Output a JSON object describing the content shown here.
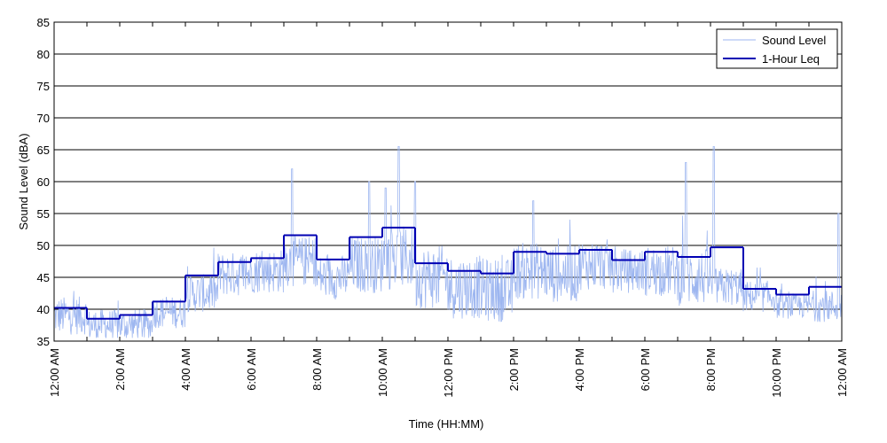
{
  "chart_data": {
    "type": "line",
    "xlabel": "Time (HH:MM)",
    "ylabel": "Sound Level (dBA)",
    "ylim": [
      35,
      85
    ],
    "xlim_hours": [
      0,
      24
    ],
    "y_ticks": [
      35,
      40,
      45,
      50,
      55,
      60,
      65,
      70,
      75,
      80,
      85
    ],
    "x_ticks": [
      {
        "hour": 0,
        "label": "12:00 AM"
      },
      {
        "hour": 2,
        "label": "2:00 AM"
      },
      {
        "hour": 4,
        "label": "4:00 AM"
      },
      {
        "hour": 6,
        "label": "6:00 AM"
      },
      {
        "hour": 8,
        "label": "8:00 AM"
      },
      {
        "hour": 10,
        "label": "10:00 AM"
      },
      {
        "hour": 12,
        "label": "12:00 PM"
      },
      {
        "hour": 14,
        "label": "2:00 PM"
      },
      {
        "hour": 16,
        "label": "4:00 PM"
      },
      {
        "hour": 18,
        "label": "6:00 PM"
      },
      {
        "hour": 20,
        "label": "8:00 PM"
      },
      {
        "hour": 22,
        "label": "10:00 PM"
      },
      {
        "hour": 24,
        "label": "12:00 AM"
      }
    ],
    "grid": "horizontal",
    "legend_position": "top-right",
    "series": [
      {
        "name": "Sound Level",
        "color": "#9db6f0",
        "style": "thin-line",
        "hourly_base": [
          39,
          37.5,
          37.5,
          39.5,
          42.5,
          45.5,
          46,
          47.5,
          45,
          47,
          48,
          45,
          43.5,
          43,
          46,
          45.5,
          47,
          46,
          46,
          45,
          43.5,
          42,
          40.5,
          40.5
        ],
        "hourly_spread": [
          3,
          2.5,
          2.5,
          2.5,
          3,
          3.5,
          3.5,
          4,
          3.5,
          4.5,
          5,
          5,
          5,
          5,
          4.5,
          4.5,
          4,
          3.5,
          4,
          4.5,
          3,
          2.5,
          2,
          2.5
        ],
        "peaks": [
          {
            "hour": 7.25,
            "db": 62
          },
          {
            "hour": 9.6,
            "db": 60
          },
          {
            "hour": 10.5,
            "db": 65.5
          },
          {
            "hour": 11.0,
            "db": 60
          },
          {
            "hour": 10.1,
            "db": 59
          },
          {
            "hour": 19.25,
            "db": 63
          },
          {
            "hour": 20.1,
            "db": 65.5
          },
          {
            "hour": 14.6,
            "db": 57
          },
          {
            "hour": 23.9,
            "db": 55
          }
        ]
      },
      {
        "name": "1-Hour Leq",
        "color": "#0000b3",
        "style": "step",
        "hours": [
          0,
          1,
          2,
          3,
          4,
          5,
          6,
          7,
          8,
          9,
          10,
          11,
          12,
          13,
          14,
          15,
          16,
          17,
          18,
          19,
          20,
          21,
          22,
          23
        ],
        "values": [
          40.2,
          38.5,
          39.1,
          41.2,
          45.3,
          47.4,
          48.0,
          51.6,
          47.8,
          51.3,
          52.8,
          47.2,
          46.0,
          45.6,
          49.0,
          48.7,
          49.3,
          47.7,
          49.0,
          48.2,
          49.7,
          43.2,
          42.3,
          43.5
        ]
      }
    ]
  }
}
